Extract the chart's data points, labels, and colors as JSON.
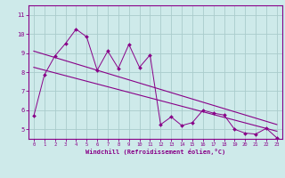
{
  "title": "",
  "xlabel": "Windchill (Refroidissement éolien,°C)",
  "ylabel": "",
  "bg_color": "#ceeaea",
  "grid_color": "#aacccc",
  "line_color": "#880088",
  "xlim": [
    -0.5,
    23.5
  ],
  "ylim": [
    4.5,
    11.5
  ],
  "xticks": [
    0,
    1,
    2,
    3,
    4,
    5,
    6,
    7,
    8,
    9,
    10,
    11,
    12,
    13,
    14,
    15,
    16,
    17,
    18,
    19,
    20,
    21,
    22,
    23
  ],
  "yticks": [
    5,
    6,
    7,
    8,
    9,
    10,
    11
  ],
  "data_x": [
    0,
    1,
    2,
    3,
    4,
    5,
    6,
    7,
    8,
    9,
    10,
    11,
    12,
    13,
    14,
    15,
    16,
    17,
    18,
    19,
    20,
    21,
    22,
    23
  ],
  "data_y": [
    5.7,
    7.85,
    8.85,
    9.5,
    10.25,
    9.85,
    8.1,
    9.1,
    8.2,
    9.45,
    8.25,
    8.9,
    5.25,
    5.65,
    5.2,
    5.35,
    6.0,
    5.85,
    5.75,
    5.0,
    4.8,
    4.75,
    5.05,
    4.55
  ],
  "trend1_x": [
    0,
    23
  ],
  "trend1_y": [
    9.1,
    5.25
  ],
  "trend2_x": [
    0,
    23
  ],
  "trend2_y": [
    8.25,
    4.9
  ]
}
